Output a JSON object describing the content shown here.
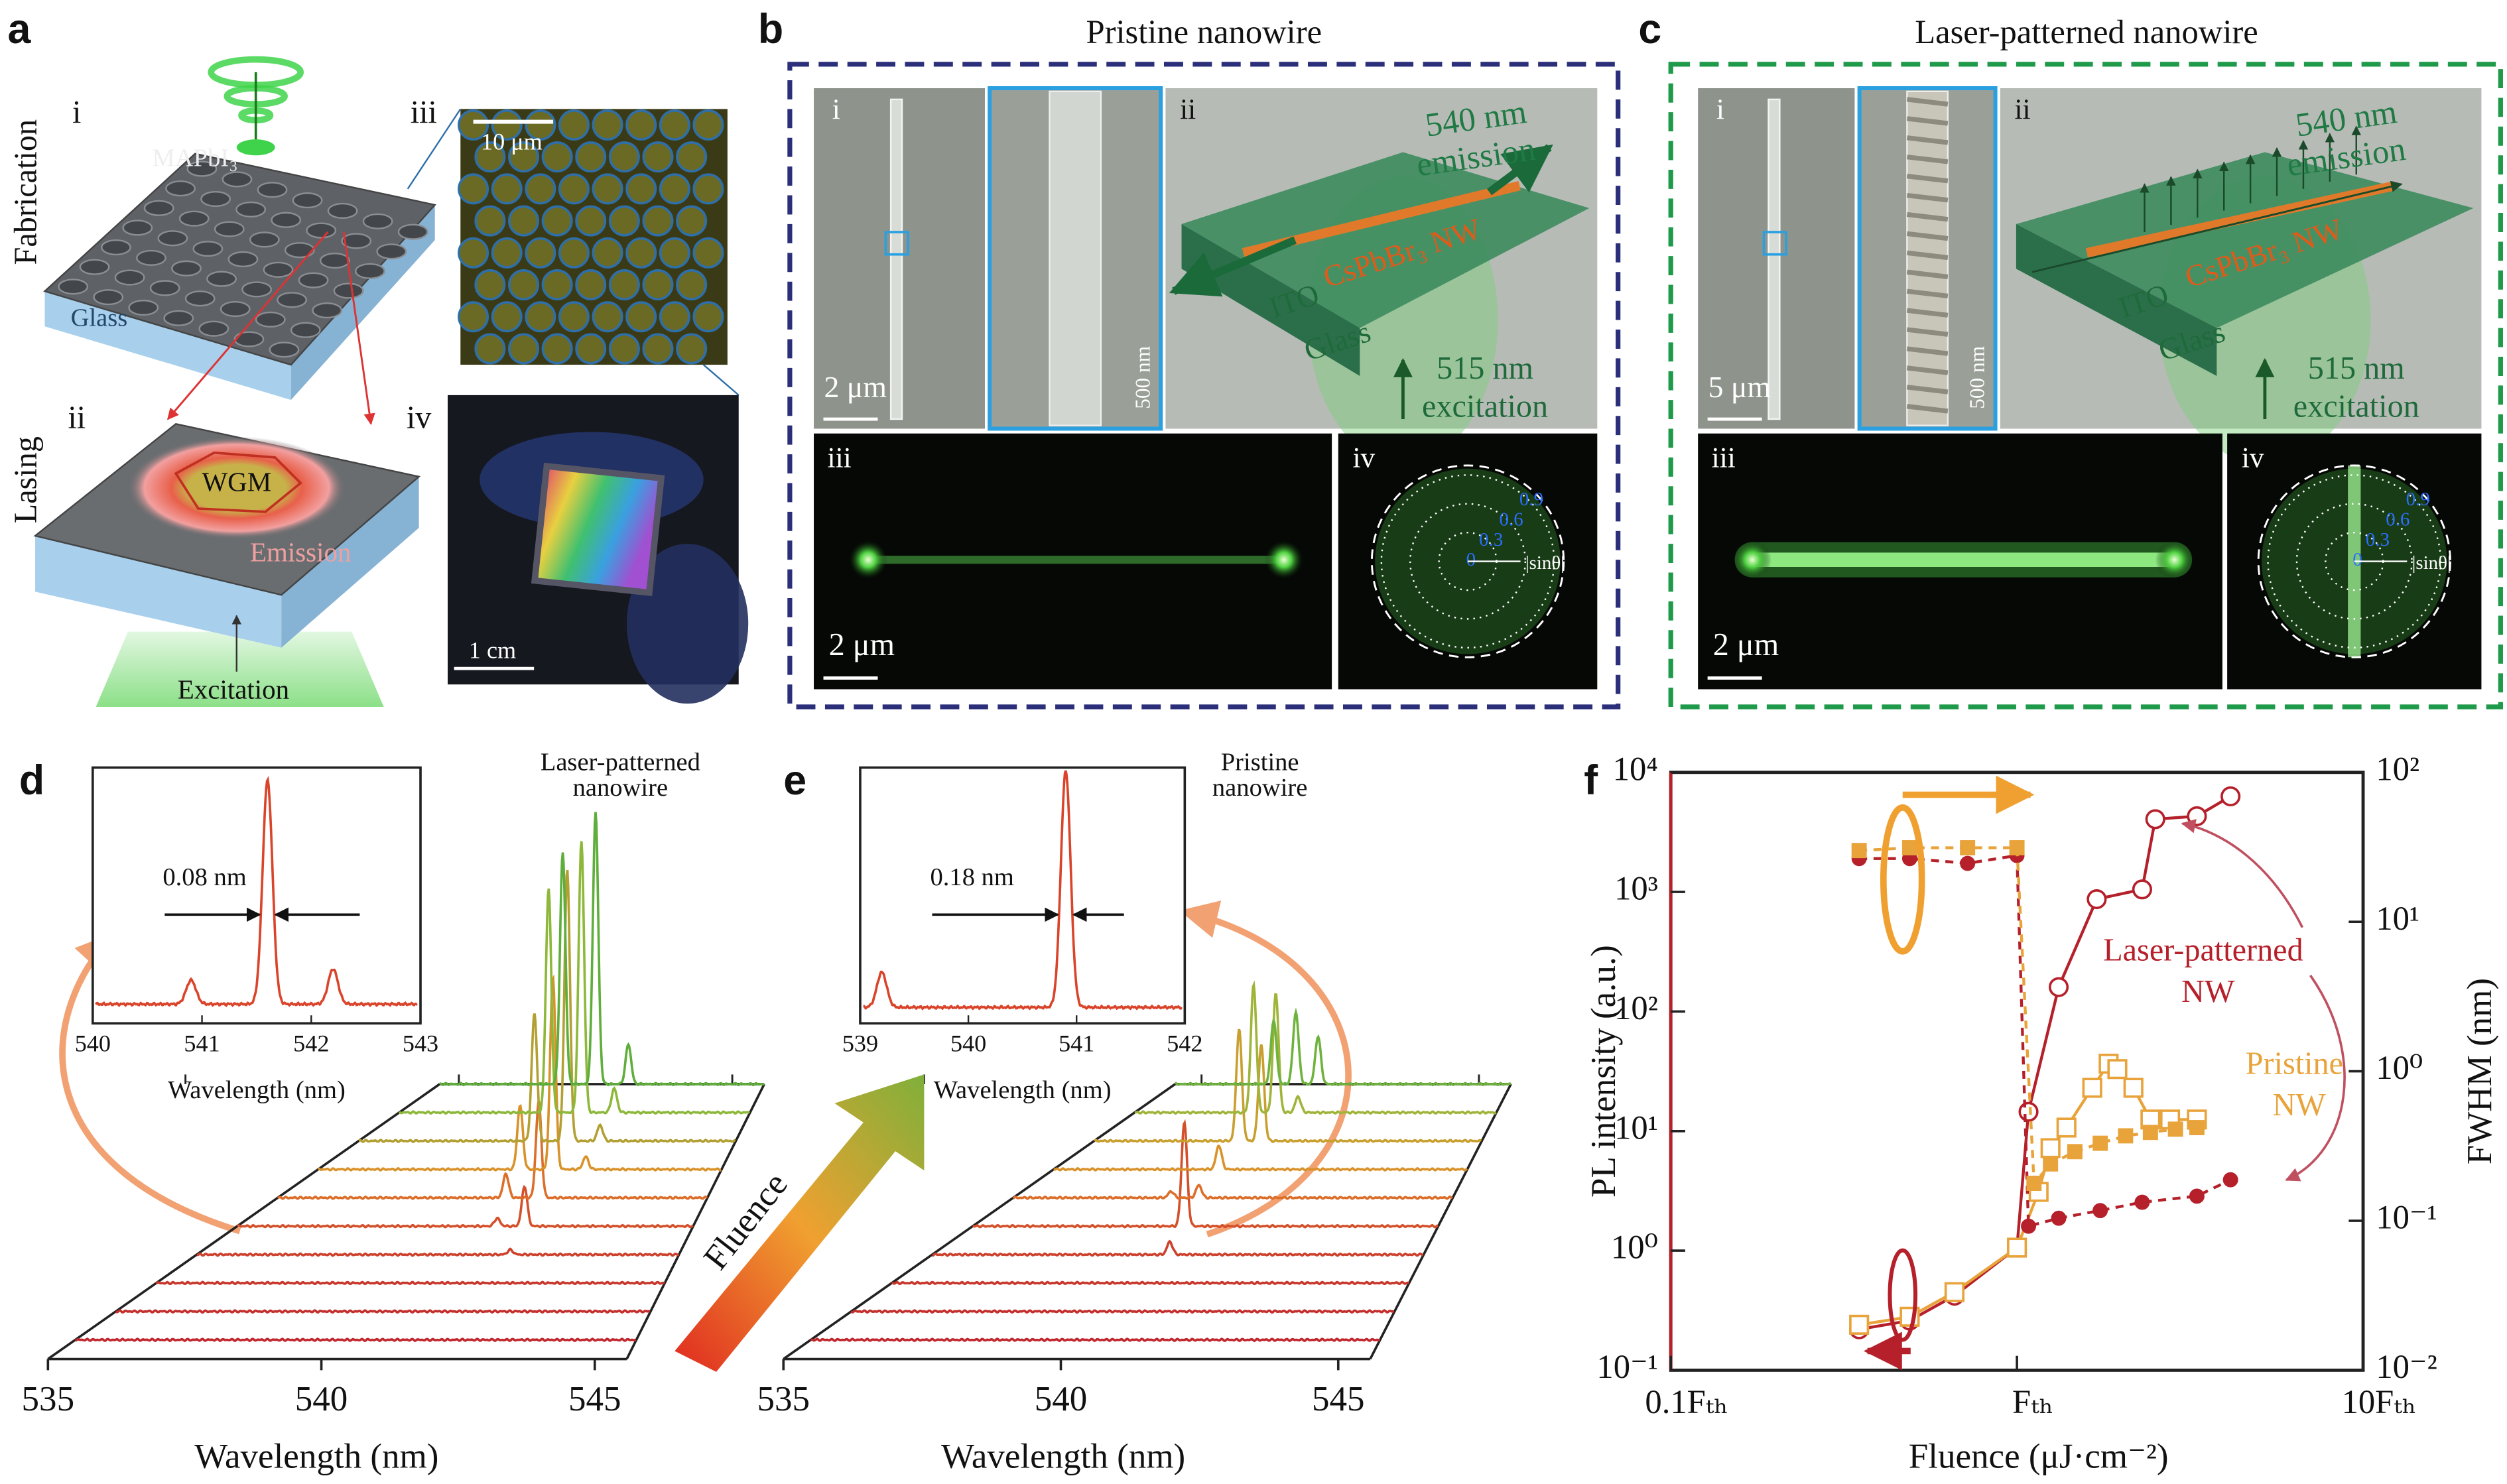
{
  "panels": {
    "a": {
      "label": "a",
      "fabrication": "Fabrication",
      "lasing": "Lasing",
      "sub": [
        "i",
        "ii",
        "iii",
        "iv"
      ],
      "material": "MAPbI₃",
      "glass": "Glass",
      "wgm": "WGM",
      "emission": "Emission",
      "excitation": "Excitation",
      "scale_iii": "10 μm",
      "scale_iv": "1 cm"
    },
    "b": {
      "label": "b",
      "title": "Pristine nanowire",
      "sub": [
        "i",
        "ii",
        "iii",
        "iv"
      ],
      "scale_i": "2 μm",
      "scale_inset": "500 nm",
      "emission": [
        "540 nm",
        "emission"
      ],
      "nanowire": "CsPbBr₃ NW",
      "ito": "ITO",
      "glass": "Glass",
      "excitation": [
        "515 nm",
        "excitation"
      ],
      "scale_iii": "2 μm",
      "polar_ticks": [
        0,
        0.3,
        0.6,
        0.9
      ],
      "polar_label": "|sinθ|",
      "color": "#2b2f7a"
    },
    "c": {
      "label": "c",
      "title": "Laser-patterned nanowire",
      "sub": [
        "i",
        "ii",
        "iii",
        "iv"
      ],
      "scale_i": "5 μm",
      "scale_inset": "500 nm",
      "emission": [
        "540 nm",
        "emission"
      ],
      "nanowire": "CsPbBr₃ NW",
      "ito": "ITO",
      "glass": "Glass",
      "excitation": [
        "515 nm",
        "excitation"
      ],
      "scale_iii": "2 μm",
      "polar_ticks": [
        0,
        0.3,
        0.6,
        0.9
      ],
      "polar_label": "|sinθ|",
      "color": "#1f9a4a"
    }
  },
  "fluence_label": "Fluence",
  "chart_data": [
    {
      "type": "waterfall",
      "label": "d",
      "annotation": [
        "Laser-patterned",
        "nanowire"
      ],
      "xlabel": "Wavelength (nm)",
      "xlim": [
        535,
        545
      ],
      "xticks": [
        535,
        540,
        545
      ],
      "traces": [
        {
          "color": "#c0282d",
          "peaks": []
        },
        {
          "color": "#c42f2c",
          "peaks": []
        },
        {
          "color": "#c8362b",
          "peaks": []
        },
        {
          "color": "#cd402b",
          "peaks": [
            [
              542.5,
              3
            ]
          ]
        },
        {
          "color": "#d4502a",
          "peaks": [
            [
              542.5,
              25
            ],
            [
              542.0,
              5
            ]
          ]
        },
        {
          "color": "#dc6e2a",
          "peaks": [
            [
              542.5,
              60
            ],
            [
              541.9,
              15
            ]
          ]
        },
        {
          "color": "#d9922a",
          "peaks": [
            [
              542.5,
              120
            ],
            [
              541.9,
              40
            ],
            [
              543.1,
              8
            ]
          ]
        },
        {
          "color": "#b3a033",
          "peaks": [
            [
              542.5,
              170
            ],
            [
              541.9,
              80
            ],
            [
              543.1,
              10
            ]
          ]
        },
        {
          "color": "#8db83a",
          "peaks": [
            [
              542.5,
              170
            ],
            [
              541.9,
              140
            ],
            [
              543.1,
              15
            ]
          ]
        },
        {
          "color": "#5fae3c",
          "peaks": [
            [
              542.5,
              170
            ],
            [
              541.9,
              145
            ],
            [
              543.1,
              25
            ]
          ]
        }
      ],
      "inset": {
        "xlim": [
          540,
          543
        ],
        "xticks": [
          540,
          541,
          542,
          543
        ],
        "xlabel": "Wavelength (nm)",
        "fwhm_label": "0.08 nm",
        "color": "#d9442a",
        "peaks": [
          [
            541.6,
            140
          ],
          [
            540.9,
            15
          ],
          [
            542.2,
            22
          ]
        ]
      }
    },
    {
      "type": "waterfall",
      "label": "e",
      "annotation": [
        "Pristine",
        "nanowire"
      ],
      "xlabel": "Wavelength (nm)",
      "xlim": [
        535,
        545
      ],
      "xticks": [
        535,
        540,
        545
      ],
      "traces": [
        {
          "color": "#c0282d",
          "peaks": []
        },
        {
          "color": "#c42f2c",
          "peaks": []
        },
        {
          "color": "#c8362b",
          "peaks": []
        },
        {
          "color": "#cd402b",
          "peaks": [
            [
              541.0,
              8
            ]
          ]
        },
        {
          "color": "#d4502a",
          "peaks": [
            [
              541.0,
              65
            ]
          ]
        },
        {
          "color": "#dc6e2a",
          "peaks": [
            [
              541.0,
              8
            ],
            [
              540.5,
              4
            ]
          ]
        },
        {
          "color": "#d9922a",
          "peaks": [
            [
              541.1,
              15
            ]
          ]
        },
        {
          "color": "#c9a030",
          "peaks": [
            [
              541.2,
              70
            ],
            [
              541.6,
              60
            ]
          ]
        },
        {
          "color": "#9fb53a",
          "peaks": [
            [
              541.2,
              80
            ],
            [
              541.6,
              75
            ],
            [
              542.0,
              10
            ]
          ]
        },
        {
          "color": "#6fb23e",
          "peaks": [
            [
              541.3,
              40
            ],
            [
              541.7,
              45
            ],
            [
              542.1,
              30
            ]
          ]
        }
      ],
      "inset": {
        "xlim": [
          539,
          542
        ],
        "xticks": [
          539,
          540,
          541,
          542
        ],
        "xlabel": "Wavelength (nm)",
        "fwhm_label": "0.18 nm",
        "color": "#d9442a",
        "peaks": [
          [
            540.9,
            148
          ],
          [
            539.2,
            22
          ]
        ]
      }
    },
    {
      "type": "line",
      "label": "f",
      "xlabel": "Fluence (μJ·cm⁻²)",
      "ylabel": "PL intensity (a.u.)",
      "y2label": "FWHM (nm)",
      "xscale": "log",
      "yscale": "log",
      "y2scale": "log",
      "xlim": [
        0.1,
        10
      ],
      "xticks": [
        {
          "value": 0.1,
          "label": "0.1Fₜₕ"
        },
        {
          "value": 1,
          "label": "Fₜₕ"
        },
        {
          "value": 10,
          "label": "10Fₜₕ"
        }
      ],
      "ylim": [
        0.1,
        10000
      ],
      "yticks": [
        {
          "value": 0.1,
          "label": "10⁻¹"
        },
        {
          "value": 1,
          "label": "10⁰"
        },
        {
          "value": 10,
          "label": "10¹"
        },
        {
          "value": 100,
          "label": "10²"
        },
        {
          "value": 1000,
          "label": "10³"
        },
        {
          "value": 10000,
          "label": "10⁴"
        }
      ],
      "y2lim": [
        0.01,
        100
      ],
      "y2ticks": [
        {
          "value": 0.01,
          "label": "10⁻²"
        },
        {
          "value": 0.1,
          "label": "10⁻¹"
        },
        {
          "value": 1,
          "label": "10⁰"
        },
        {
          "value": 10,
          "label": "10¹"
        },
        {
          "value": 100,
          "label": "10²"
        }
      ],
      "series": [
        {
          "color": "#b5202a",
          "marker": "open-circle",
          "line": "solid",
          "axis": "y",
          "x": [
            0.35,
            0.49,
            0.66,
            1.0,
            1.08,
            1.32,
            1.7,
            2.3,
            2.51,
            3.31,
            4.14
          ],
          "values": [
            0.22,
            0.26,
            0.42,
            1.06,
            14.5,
            160,
            870,
            1050,
            4060,
            4300,
            6300
          ]
        },
        {
          "color": "#e8a33a",
          "marker": "open-square",
          "line": "solid",
          "axis": "y",
          "x": [
            0.35,
            0.49,
            0.66,
            1.0,
            1.155,
            1.25,
            1.39,
            1.65,
            1.84,
            1.95,
            2.17,
            2.43,
            2.77,
            3.31
          ],
          "values": [
            0.24,
            0.28,
            0.45,
            1.06,
            3.1,
            7.2,
            10.7,
            23,
            36.6,
            33,
            23,
            12.5,
            12.5,
            12.5
          ]
        },
        {
          "color": "#b5202a",
          "marker": "filled-circle",
          "line": "dashed",
          "axis": "y2",
          "x": [
            0.35,
            0.49,
            0.72,
            1.0,
            1.08,
            1.32,
            1.74,
            2.3,
            3.31,
            4.14
          ],
          "values": [
            26.5,
            26.5,
            24.6,
            27.8,
            0.092,
            0.104,
            0.117,
            0.133,
            0.146,
            0.188
          ]
        },
        {
          "color": "#e8a33a",
          "marker": "filled-square",
          "line": "dashed",
          "axis": "y2",
          "x": [
            0.35,
            0.49,
            0.72,
            1.0,
            1.12,
            1.25,
            1.47,
            1.74,
            2.06,
            2.43,
            2.87,
            3.31
          ],
          "values": [
            30,
            31.3,
            31.3,
            31.3,
            0.178,
            0.24,
            0.29,
            0.33,
            0.37,
            0.39,
            0.41,
            0.42
          ]
        }
      ],
      "annotations": [
        {
          "lines": [
            "Laser-patterned",
            "NW"
          ],
          "color": "#b5202a"
        },
        {
          "lines": [
            "Pristine",
            "NW"
          ],
          "color": "#e8a33a"
        }
      ]
    }
  ]
}
